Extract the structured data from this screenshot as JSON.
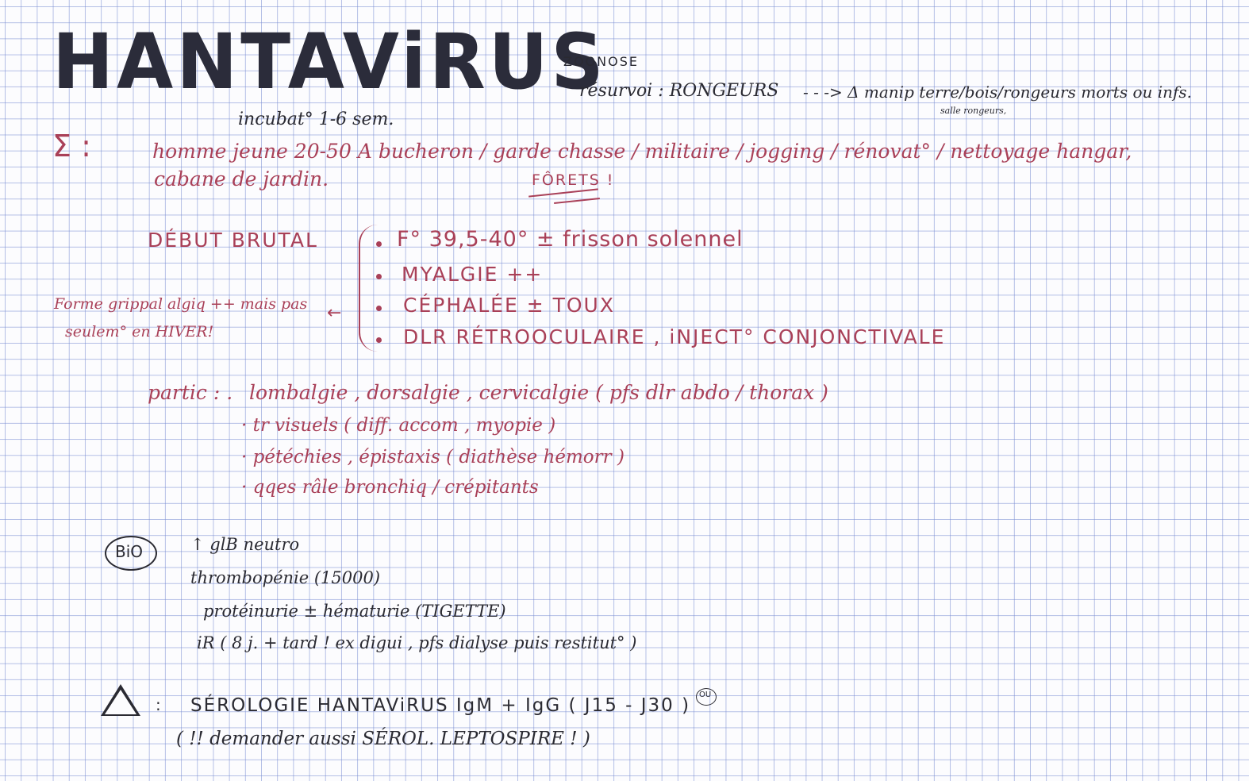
{
  "title": "HANTAViRUS",
  "zoonose": "ZOONOSE",
  "reservoir": "résurvoi : RONGEURS",
  "reservoir_arrow": "- - -> Δ manip terre/bois/rongeurs morts ou infs.",
  "reservoir_sub": "salle rongeurs,",
  "incubation": "incubat° 1-6 sem.",
  "sigma": "Σ :",
  "epidemio_line1": "homme jeune 20-50 A   bucheron / garde chasse / militaire / jogging / rénovat° / nettoyage hangar,",
  "epidemio_line2": "cabane de jardin.",
  "forets": "FÔRETS !",
  "debut_brutal": "DÉBUT BRUTAL",
  "symptoms": [
    "F° 39,5-40°  ± frisson solennel",
    "MYALGIE ++",
    "CÉPHALÉE ± TOUX",
    "DLR RÉTROOCULAIRE , iNJECT° CONJONCTIVALE"
  ],
  "side_note_1": "Forme grippal algiq ++ mais pas",
  "side_note_2": "seulem° en HIVER!",
  "partic_label": "partic : .",
  "partic_items": [
    "lombalgie , dorsalgie , cervicalgie  ( pfs dlr abdo / thorax )",
    "· tr visuels  ( diff. accom , myopie )",
    "· pétéchies , épistaxis  ( diathèse hémorr )",
    "· qqes râle bronchiq / crépitants"
  ],
  "bio_label": "BiO",
  "bio_items": [
    "↑ glB neutro",
    "thrombopénie (15000)",
    "protéinurie ± hématurie (TIGETTE)",
    "iR ( 8 j. + tard ! ex digui , pfs dialyse puis restitut° )"
  ],
  "diag_colon": ":",
  "diag_line1": "SÉROLOGIE  HANTAViRUS  IgM + IgG  ( J15 - J30 )",
  "diag_ou": "OU",
  "diag_line2": "( !! demander aussi  SÉROL. LEPTOSPIRE ! )",
  "colors": {
    "red_ink": "#a94058",
    "black_ink": "#2a2a32",
    "grid": "#788cd2"
  }
}
